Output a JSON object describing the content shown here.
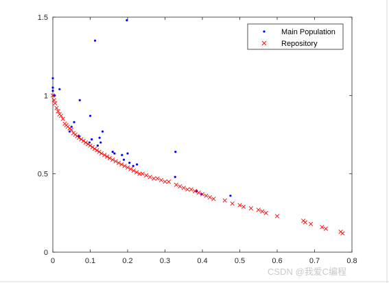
{
  "chart_data": {
    "type": "scatter",
    "title": "",
    "xlabel": "",
    "ylabel": "",
    "xlim": [
      0,
      0.8
    ],
    "ylim": [
      0,
      1.5
    ],
    "x_ticks": [
      "0",
      "0.1",
      "0.2",
      "0.3",
      "0.4",
      "0.5",
      "0.6",
      "0.7",
      "0.8"
    ],
    "y_ticks": [
      "0",
      "0.5",
      "1",
      "1.5"
    ],
    "x_tick_values": [
      0,
      0.1,
      0.2,
      0.3,
      0.4,
      0.5,
      0.6,
      0.7,
      0.8
    ],
    "y_tick_values": [
      0,
      0.5,
      1,
      1.5
    ],
    "grid": false,
    "legend_position": "top-right",
    "series": [
      {
        "name": "Main Population",
        "marker": "dot",
        "color": "#0000ff",
        "points": [
          [
            0.198,
            1.48
          ],
          [
            0.113,
            1.35
          ],
          [
            0.0,
            1.11
          ],
          [
            0.0,
            1.05
          ],
          [
            0.0,
            1.03
          ],
          [
            0.018,
            1.04
          ],
          [
            0.072,
            0.97
          ],
          [
            0.1,
            0.87
          ],
          [
            0.057,
            0.83
          ],
          [
            0.133,
            0.77
          ],
          [
            0.125,
            0.73
          ],
          [
            0.104,
            0.72
          ],
          [
            0.098,
            0.7
          ],
          [
            0.12,
            0.68
          ],
          [
            0.128,
            0.7
          ],
          [
            0.16,
            0.64
          ],
          [
            0.165,
            0.63
          ],
          [
            0.185,
            0.62
          ],
          [
            0.2,
            0.63
          ],
          [
            0.19,
            0.59
          ],
          [
            0.205,
            0.57
          ],
          [
            0.225,
            0.56
          ],
          [
            0.215,
            0.55
          ],
          [
            0.328,
            0.64
          ],
          [
            0.327,
            0.48
          ],
          [
            0.385,
            0.39
          ],
          [
            0.398,
            0.37
          ],
          [
            0.475,
            0.36
          ],
          [
            0.05,
            0.8
          ],
          [
            0.07,
            0.74
          ],
          [
            0.005,
            1.0
          ],
          [
            0.045,
            0.77
          ]
        ]
      },
      {
        "name": "Repository",
        "marker": "x",
        "color": "#ff0000",
        "points": [
          [
            0.0,
            1.0
          ],
          [
            0.003,
            0.97
          ],
          [
            0.006,
            0.95
          ],
          [
            0.01,
            0.92
          ],
          [
            0.014,
            0.9
          ],
          [
            0.018,
            0.88
          ],
          [
            0.022,
            0.87
          ],
          [
            0.027,
            0.85
          ],
          [
            0.032,
            0.82
          ],
          [
            0.036,
            0.81
          ],
          [
            0.04,
            0.8
          ],
          [
            0.045,
            0.79
          ],
          [
            0.05,
            0.78
          ],
          [
            0.055,
            0.76
          ],
          [
            0.06,
            0.75
          ],
          [
            0.065,
            0.74
          ],
          [
            0.07,
            0.73
          ],
          [
            0.076,
            0.72
          ],
          [
            0.082,
            0.71
          ],
          [
            0.088,
            0.7
          ],
          [
            0.094,
            0.69
          ],
          [
            0.1,
            0.68
          ],
          [
            0.106,
            0.67
          ],
          [
            0.112,
            0.66
          ],
          [
            0.118,
            0.65
          ],
          [
            0.124,
            0.64
          ],
          [
            0.13,
            0.63
          ],
          [
            0.138,
            0.62
          ],
          [
            0.145,
            0.61
          ],
          [
            0.152,
            0.6
          ],
          [
            0.16,
            0.59
          ],
          [
            0.168,
            0.58
          ],
          [
            0.176,
            0.57
          ],
          [
            0.184,
            0.56
          ],
          [
            0.192,
            0.55
          ],
          [
            0.2,
            0.54
          ],
          [
            0.208,
            0.53
          ],
          [
            0.216,
            0.52
          ],
          [
            0.224,
            0.51
          ],
          [
            0.232,
            0.5
          ],
          [
            0.24,
            0.5
          ],
          [
            0.25,
            0.49
          ],
          [
            0.26,
            0.48
          ],
          [
            0.27,
            0.47
          ],
          [
            0.28,
            0.47
          ],
          [
            0.29,
            0.46
          ],
          [
            0.3,
            0.45
          ],
          [
            0.31,
            0.45
          ],
          [
            0.33,
            0.43
          ],
          [
            0.34,
            0.42
          ],
          [
            0.35,
            0.41
          ],
          [
            0.36,
            0.4
          ],
          [
            0.37,
            0.4
          ],
          [
            0.38,
            0.39
          ],
          [
            0.39,
            0.38
          ],
          [
            0.4,
            0.37
          ],
          [
            0.41,
            0.36
          ],
          [
            0.42,
            0.35
          ],
          [
            0.43,
            0.34
          ],
          [
            0.46,
            0.33
          ],
          [
            0.48,
            0.31
          ],
          [
            0.5,
            0.3
          ],
          [
            0.51,
            0.29
          ],
          [
            0.53,
            0.28
          ],
          [
            0.55,
            0.27
          ],
          [
            0.56,
            0.26
          ],
          [
            0.57,
            0.25
          ],
          [
            0.6,
            0.23
          ],
          [
            0.67,
            0.2
          ],
          [
            0.675,
            0.19
          ],
          [
            0.69,
            0.18
          ],
          [
            0.72,
            0.16
          ],
          [
            0.73,
            0.15
          ],
          [
            0.77,
            0.13
          ],
          [
            0.775,
            0.12
          ]
        ]
      }
    ]
  },
  "watermark": "CSDN @我爱C编程"
}
